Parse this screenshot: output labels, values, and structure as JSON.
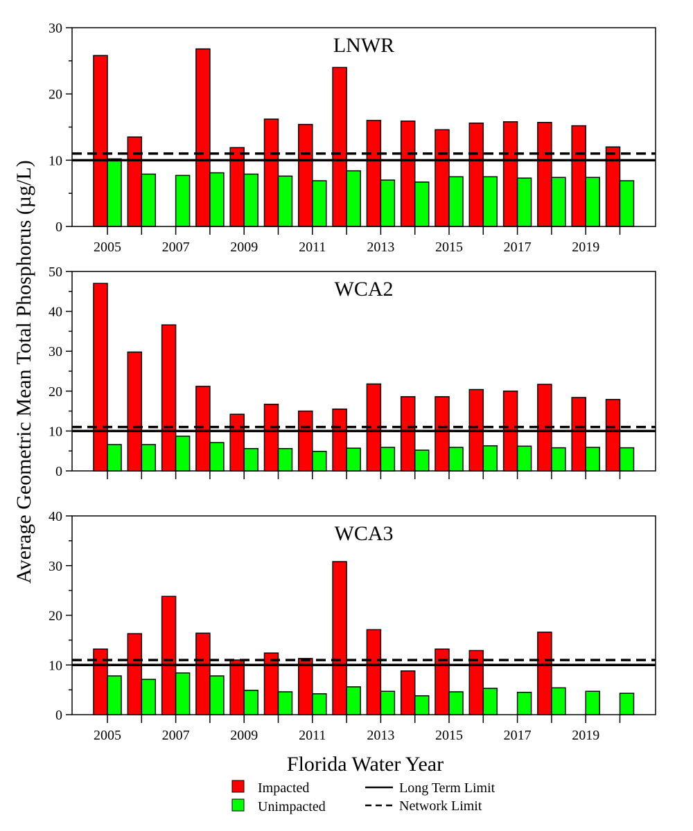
{
  "figure": {
    "ylabel": "Average Geometric Mean Total Phosphorus (µg/L)",
    "xlabel": "Florida Water Year",
    "legend": {
      "placement": "bottom",
      "impacted_label": "Impacted",
      "unimpacted_label": "Unimpacted",
      "long_term_label": "Long Term Limit",
      "network_label": "Network Limit"
    },
    "colors": {
      "impacted": "#ff0000",
      "unimpacted": "#00ff00",
      "lines": "#000000"
    }
  },
  "chart_data": [
    {
      "type": "bar",
      "title": "LNWR",
      "categories": [
        "2005",
        "2006",
        "2007",
        "2008",
        "2009",
        "2010",
        "2011",
        "2012",
        "2013",
        "2014",
        "2015",
        "2016",
        "2017",
        "2018",
        "2019",
        "2020"
      ],
      "x_tick_labels": [
        "2005",
        "2007",
        "2009",
        "2011",
        "2013",
        "2015",
        "2017",
        "2019"
      ],
      "ylim": [
        0,
        30
      ],
      "y_ticks": [
        "0",
        "10",
        "20",
        "30"
      ],
      "series": [
        {
          "name": "Impacted",
          "values": [
            25.8,
            13.5,
            null,
            26.8,
            11.9,
            16.2,
            15.4,
            24.0,
            16.0,
            15.9,
            14.6,
            15.6,
            15.8,
            15.7,
            15.2,
            12.0
          ]
        },
        {
          "name": "Unimpacted",
          "values": [
            10.2,
            7.9,
            7.7,
            8.1,
            7.9,
            7.6,
            6.9,
            8.4,
            7.0,
            6.7,
            7.5,
            7.5,
            7.3,
            7.4,
            7.4,
            6.9
          ]
        }
      ],
      "reference_lines": [
        {
          "name": "Long Term Limit",
          "value": 10,
          "style": "solid"
        },
        {
          "name": "Network Limit",
          "value": 11,
          "style": "dashed"
        }
      ]
    },
    {
      "type": "bar",
      "title": "WCA2",
      "categories": [
        "2005",
        "2006",
        "2007",
        "2008",
        "2009",
        "2010",
        "2011",
        "2012",
        "2013",
        "2014",
        "2015",
        "2016",
        "2017",
        "2018",
        "2019",
        "2020"
      ],
      "x_tick_labels": [],
      "ylim": [
        0,
        50
      ],
      "y_ticks": [
        "0",
        "10",
        "20",
        "30",
        "40",
        "50"
      ],
      "series": [
        {
          "name": "Impacted",
          "values": [
            47.0,
            29.8,
            36.6,
            21.2,
            14.2,
            16.7,
            15.0,
            15.5,
            21.8,
            18.6,
            18.6,
            20.4,
            20.0,
            21.7,
            18.4,
            17.9
          ]
        },
        {
          "name": "Unimpacted",
          "values": [
            6.6,
            6.6,
            8.7,
            7.1,
            5.6,
            5.6,
            4.9,
            5.7,
            5.9,
            5.2,
            5.9,
            6.3,
            6.2,
            5.8,
            5.9,
            5.8
          ]
        }
      ],
      "reference_lines": [
        {
          "name": "Long Term Limit",
          "value": 10,
          "style": "solid"
        },
        {
          "name": "Network Limit",
          "value": 11,
          "style": "dashed"
        }
      ]
    },
    {
      "type": "bar",
      "title": "WCA3",
      "categories": [
        "2005",
        "2006",
        "2007",
        "2008",
        "2009",
        "2010",
        "2011",
        "2012",
        "2013",
        "2014",
        "2015",
        "2016",
        "2017",
        "2018",
        "2019",
        "2020"
      ],
      "x_tick_labels": [
        "2005",
        "2007",
        "2009",
        "2011",
        "2013",
        "2015",
        "2017",
        "2019"
      ],
      "ylim": [
        0,
        40
      ],
      "y_ticks": [
        "0",
        "10",
        "20",
        "30",
        "40"
      ],
      "series": [
        {
          "name": "Impacted",
          "values": [
            13.2,
            16.3,
            23.8,
            16.4,
            11.0,
            12.4,
            11.3,
            30.8,
            17.1,
            8.8,
            13.2,
            12.9,
            null,
            16.6,
            null,
            null
          ]
        },
        {
          "name": "Unimpacted",
          "values": [
            7.8,
            7.1,
            8.4,
            7.8,
            4.9,
            4.6,
            4.2,
            5.6,
            4.7,
            3.8,
            4.6,
            5.3,
            4.5,
            5.4,
            4.7,
            4.3
          ]
        }
      ],
      "reference_lines": [
        {
          "name": "Long Term Limit",
          "value": 10,
          "style": "solid"
        },
        {
          "name": "Network Limit",
          "value": 11,
          "style": "dashed"
        }
      ]
    }
  ]
}
